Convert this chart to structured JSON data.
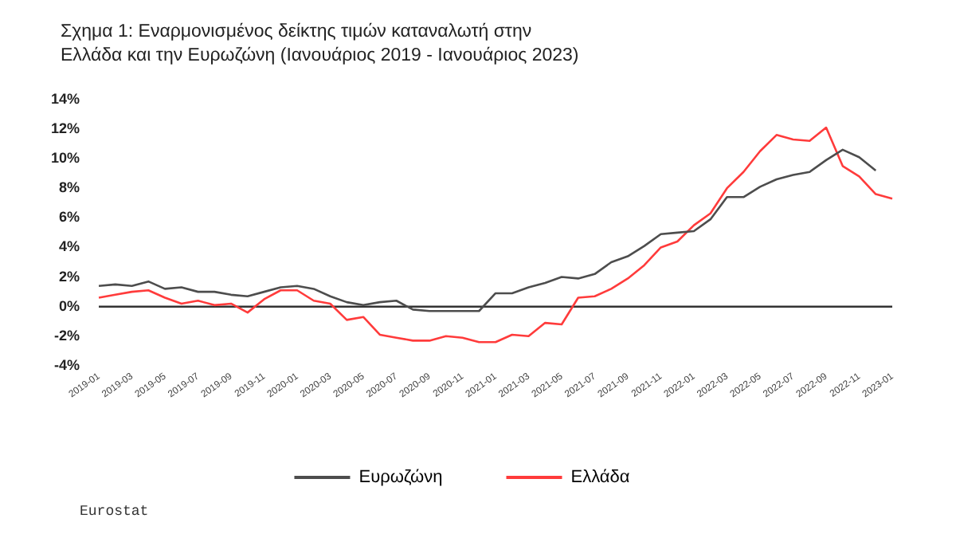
{
  "chart_data": {
    "type": "line",
    "title": "Σχημα 1: Εναρμονισμένος δείκτης τιμών καταναλωτή στην Ελλάδα και την Ευρωζώνη (Ιανουάριος 2019 - Ιανουάριος 2023)",
    "categories": [
      "2019-01",
      null,
      "2019-03",
      null,
      "2019-05",
      null,
      "2019-07",
      null,
      "2019-09",
      null,
      "2019-11",
      null,
      "2020-01",
      null,
      "2020-03",
      null,
      "2020-05",
      null,
      "2020-07",
      null,
      "2020-09",
      null,
      "2020-11",
      null,
      "2021-01",
      null,
      "2021-03",
      null,
      "2021-05",
      null,
      "2021-07",
      null,
      "2021-09",
      null,
      "2021-11",
      null,
      "2022-01",
      null,
      "2022-03",
      null,
      "2022-05",
      null,
      "2022-07",
      null,
      "2022-09",
      null,
      "2022-11",
      null,
      "2023-01"
    ],
    "series": [
      {
        "name": "Ευρωζώνη",
        "color": "#4d4d4d",
        "values": [
          1.4,
          1.5,
          1.4,
          1.7,
          1.2,
          1.3,
          1.0,
          1.0,
          0.8,
          0.7,
          1.0,
          1.3,
          1.4,
          1.2,
          0.7,
          0.3,
          0.1,
          0.3,
          0.4,
          -0.2,
          -0.3,
          -0.3,
          -0.3,
          -0.3,
          0.9,
          0.9,
          1.3,
          1.6,
          2.0,
          1.9,
          2.2,
          3.0,
          3.4,
          4.1,
          4.9,
          5.0,
          5.1,
          5.9,
          7.4,
          7.4,
          8.1,
          8.6,
          8.9,
          9.1,
          9.9,
          10.6,
          10.1,
          9.2,
          null
        ]
      },
      {
        "name": "Ελλάδα",
        "color": "#ff3b3b",
        "values": [
          0.6,
          0.8,
          1.0,
          1.1,
          0.6,
          0.2,
          0.4,
          0.1,
          0.2,
          -0.4,
          0.5,
          1.1,
          1.1,
          0.4,
          0.2,
          -0.9,
          -0.7,
          -1.9,
          -2.1,
          -2.3,
          -2.3,
          -2.0,
          -2.1,
          -2.4,
          -2.4,
          -1.9,
          -2.0,
          -1.1,
          -1.2,
          0.6,
          0.7,
          1.2,
          1.9,
          2.8,
          4.0,
          4.4,
          5.5,
          6.3,
          8.0,
          9.1,
          10.5,
          11.6,
          11.3,
          11.2,
          12.1,
          9.5,
          8.8,
          7.6,
          7.3
        ]
      }
    ],
    "ylim": [
      -4,
      14
    ],
    "yticks": [
      {
        "value": -4,
        "label": "-4%"
      },
      {
        "value": -2,
        "label": "-2%"
      },
      {
        "value": 0,
        "label": "0%"
      },
      {
        "value": 2,
        "label": "2%"
      },
      {
        "value": 4,
        "label": "4%"
      },
      {
        "value": 6,
        "label": "6%"
      },
      {
        "value": 8,
        "label": "8%"
      },
      {
        "value": 10,
        "label": "10%"
      },
      {
        "value": 12,
        "label": "12%"
      },
      {
        "value": 14,
        "label": "14%"
      }
    ],
    "ref_lines": [
      {
        "axis": "y",
        "value": 0,
        "color": "#333333"
      }
    ],
    "grid": false,
    "legend": "bottom",
    "marker": "none",
    "line_style": "solid",
    "annotations": [
      "Eurostat"
    ]
  }
}
